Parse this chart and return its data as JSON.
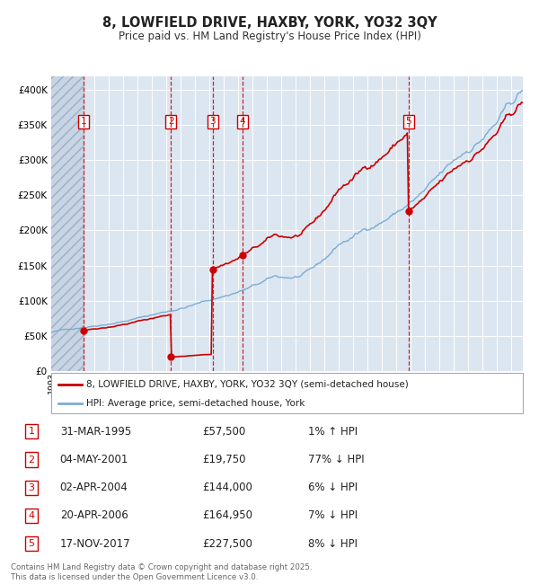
{
  "title1": "8, LOWFIELD DRIVE, HAXBY, YORK, YO32 3QY",
  "title2": "Price paid vs. HM Land Registry's House Price Index (HPI)",
  "xlim_start": 1993.0,
  "xlim_end": 2025.83,
  "ylim_min": 0,
  "ylim_max": 420000,
  "yticks": [
    0,
    50000,
    100000,
    150000,
    200000,
    250000,
    300000,
    350000,
    400000
  ],
  "ytick_labels": [
    "£0",
    "£50K",
    "£100K",
    "£150K",
    "£200K",
    "£250K",
    "£300K",
    "£350K",
    "£400K"
  ],
  "background_color": "#ffffff",
  "plot_bg_color": "#dce6f1",
  "grid_color": "#ffffff",
  "hatch_color": "#c8d4e3",
  "sale_dates": [
    1995.25,
    2001.34,
    2004.25,
    2006.3,
    2017.88
  ],
  "sale_prices": [
    57500,
    19750,
    144000,
    164950,
    227500
  ],
  "sale_labels": [
    "1",
    "2",
    "3",
    "4",
    "5"
  ],
  "legend_line1": "8, LOWFIELD DRIVE, HAXBY, YORK, YO32 3QY (semi-detached house)",
  "legend_line2": "HPI: Average price, semi-detached house, York",
  "red_color": "#cc0000",
  "blue_color": "#7aadd4",
  "table_data": [
    [
      "1",
      "31-MAR-1995",
      "£57,500",
      "1% ↑ HPI"
    ],
    [
      "2",
      "04-MAY-2001",
      "£19,750",
      "77% ↓ HPI"
    ],
    [
      "3",
      "02-APR-2004",
      "£144,000",
      "6% ↓ HPI"
    ],
    [
      "4",
      "20-APR-2006",
      "£164,950",
      "7% ↓ HPI"
    ],
    [
      "5",
      "17-NOV-2017",
      "£227,500",
      "8% ↓ HPI"
    ]
  ],
  "footnote": "Contains HM Land Registry data © Crown copyright and database right 2025.\nThis data is licensed under the Open Government Licence v3.0."
}
